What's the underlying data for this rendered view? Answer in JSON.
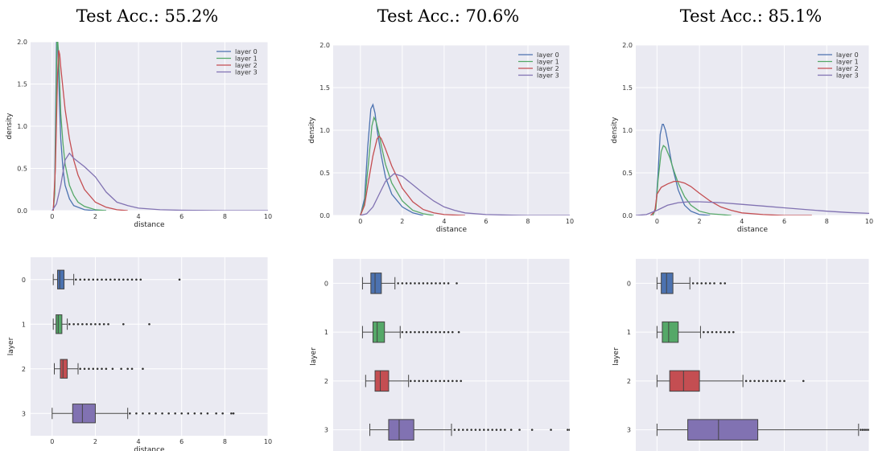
{
  "colors": {
    "layer_0": "#4C72B0",
    "layer_1": "#55A868",
    "layer_2": "#C44E52",
    "layer_3": "#8172B2",
    "axes_bg": "#EAEAF2",
    "grid": "#ffffff"
  },
  "chart_data": [
    {
      "type": "line",
      "column": 0,
      "title": "Test Acc.: 55.2%",
      "xlabel": "distance",
      "ylabel": "density",
      "xlim": [
        -1,
        10
      ],
      "ylim": [
        0,
        2.0
      ],
      "xticks": [
        0,
        2,
        4,
        6,
        8,
        10
      ],
      "yticks": [
        0.0,
        0.5,
        1.0,
        1.5,
        2.0
      ],
      "grid": true,
      "legend": "top-right",
      "series": [
        {
          "name": "layer 0",
          "x": [
            0.05,
            0.12,
            0.18,
            0.2,
            0.22,
            0.25,
            0.3,
            0.35,
            0.4,
            0.5,
            0.6,
            0.8,
            1.0,
            1.5,
            2.0,
            2.5
          ],
          "y": [
            0,
            0.3,
            1.5,
            2.0,
            2.0,
            2.0,
            1.6,
            1.2,
            0.85,
            0.5,
            0.3,
            0.14,
            0.06,
            0.01,
            0,
            0
          ]
        },
        {
          "name": "layer 1",
          "x": [
            0.05,
            0.12,
            0.18,
            0.22,
            0.26,
            0.3,
            0.35,
            0.4,
            0.5,
            0.6,
            0.8,
            1.0,
            1.2,
            1.5,
            2.0,
            2.5
          ],
          "y": [
            0,
            0.2,
            1.2,
            2.0,
            2.0,
            1.85,
            1.5,
            1.15,
            0.8,
            0.55,
            0.3,
            0.18,
            0.1,
            0.05,
            0.01,
            0
          ]
        },
        {
          "name": "layer 2",
          "x": [
            0.05,
            0.15,
            0.25,
            0.3,
            0.35,
            0.4,
            0.5,
            0.6,
            0.8,
            1.0,
            1.2,
            1.5,
            2.0,
            2.5,
            3.0,
            3.5
          ],
          "y": [
            0,
            0.5,
            1.6,
            1.9,
            1.85,
            1.7,
            1.45,
            1.2,
            0.85,
            0.6,
            0.42,
            0.25,
            0.1,
            0.04,
            0.01,
            0
          ]
        },
        {
          "name": "layer 3",
          "x": [
            0.0,
            0.2,
            0.4,
            0.6,
            0.8,
            1.0,
            1.2,
            1.5,
            2.0,
            2.5,
            3.0,
            3.5,
            4.0,
            5.0,
            6.0,
            8.0,
            10.0
          ],
          "y": [
            0,
            0.08,
            0.3,
            0.6,
            0.68,
            0.62,
            0.58,
            0.52,
            0.4,
            0.22,
            0.1,
            0.06,
            0.03,
            0.01,
            0.005,
            0,
            0
          ]
        }
      ]
    },
    {
      "type": "line",
      "column": 1,
      "title": "Test Acc.: 70.6%",
      "xlabel": "distance",
      "ylabel": "density",
      "xlim": [
        -1.3,
        10
      ],
      "ylim": [
        0,
        2.0
      ],
      "xticks": [
        0,
        2,
        4,
        6,
        8,
        10
      ],
      "yticks": [
        0.0,
        0.5,
        1.0,
        1.5,
        2.0
      ],
      "grid": true,
      "legend": "top-right",
      "series": [
        {
          "name": "layer 0",
          "x": [
            0.0,
            0.2,
            0.35,
            0.5,
            0.6,
            0.7,
            0.8,
            1.0,
            1.2,
            1.5,
            2.0,
            2.5,
            3.0
          ],
          "y": [
            0,
            0.2,
            0.8,
            1.25,
            1.3,
            1.2,
            1.0,
            0.7,
            0.45,
            0.25,
            0.1,
            0.03,
            0
          ]
        },
        {
          "name": "layer 1",
          "x": [
            0.0,
            0.2,
            0.4,
            0.55,
            0.65,
            0.75,
            0.9,
            1.0,
            1.2,
            1.5,
            2.0,
            2.5,
            3.0,
            3.5
          ],
          "y": [
            0,
            0.15,
            0.65,
            1.05,
            1.15,
            1.1,
            0.95,
            0.82,
            0.6,
            0.38,
            0.17,
            0.06,
            0.02,
            0
          ]
        },
        {
          "name": "layer 2",
          "x": [
            0.0,
            0.2,
            0.4,
            0.6,
            0.8,
            0.9,
            1.0,
            1.2,
            1.5,
            2.0,
            2.5,
            3.0,
            3.5,
            4.0,
            5.0
          ],
          "y": [
            0,
            0.12,
            0.42,
            0.7,
            0.9,
            0.93,
            0.9,
            0.78,
            0.58,
            0.32,
            0.16,
            0.07,
            0.03,
            0.01,
            0
          ]
        },
        {
          "name": "layer 3",
          "x": [
            0.0,
            0.3,
            0.6,
            0.9,
            1.2,
            1.6,
            2.0,
            2.5,
            3.0,
            3.5,
            4.0,
            4.5,
            5.0,
            6.0,
            7.0,
            8.0,
            10.0
          ],
          "y": [
            0,
            0.02,
            0.1,
            0.25,
            0.4,
            0.49,
            0.46,
            0.36,
            0.26,
            0.17,
            0.1,
            0.06,
            0.03,
            0.01,
            0.005,
            0,
            0
          ]
        }
      ]
    },
    {
      "type": "line",
      "column": 2,
      "title": "Test Acc.: 85.1%",
      "xlabel": "distance",
      "ylabel": "density",
      "xlim": [
        -1,
        10
      ],
      "ylim": [
        0,
        2.0
      ],
      "xticks": [
        0,
        2,
        4,
        6,
        8,
        10
      ],
      "yticks": [
        0.0,
        0.5,
        1.0,
        1.5,
        2.0
      ],
      "grid": true,
      "legend": "top-right",
      "series": [
        {
          "name": "layer 0",
          "x": [
            -0.2,
            -0.05,
            0.05,
            0.15,
            0.25,
            0.3,
            0.4,
            0.5,
            0.7,
            1.0,
            1.3,
            1.6,
            2.0,
            2.5
          ],
          "y": [
            0,
            0.1,
            0.5,
            0.95,
            1.07,
            1.07,
            1.0,
            0.88,
            0.6,
            0.3,
            0.12,
            0.05,
            0.01,
            0
          ]
        },
        {
          "name": "layer 1",
          "x": [
            -0.2,
            -0.05,
            0.05,
            0.2,
            0.3,
            0.4,
            0.6,
            0.8,
            1.0,
            1.3,
            1.6,
            2.0,
            2.5,
            3.0,
            3.5
          ],
          "y": [
            0,
            0.08,
            0.42,
            0.75,
            0.82,
            0.8,
            0.68,
            0.52,
            0.38,
            0.22,
            0.12,
            0.05,
            0.02,
            0.01,
            0
          ]
        },
        {
          "name": "layer 2",
          "x": [
            -0.3,
            -0.1,
            0.0,
            0.2,
            0.5,
            0.8,
            1.0,
            1.3,
            1.6,
            2.0,
            2.5,
            3.0,
            3.5,
            4.0,
            5.0,
            6.0,
            7.3
          ],
          "y": [
            0,
            0.05,
            0.25,
            0.33,
            0.37,
            0.4,
            0.4,
            0.38,
            0.34,
            0.26,
            0.17,
            0.1,
            0.06,
            0.03,
            0.01,
            0,
            0
          ]
        },
        {
          "name": "layer 3",
          "x": [
            -1.0,
            -0.5,
            0.0,
            0.5,
            1.0,
            1.5,
            2.0,
            3.0,
            4.0,
            5.0,
            6.0,
            7.0,
            8.0,
            9.0,
            10.0
          ],
          "y": [
            0,
            0.01,
            0.06,
            0.12,
            0.15,
            0.16,
            0.16,
            0.15,
            0.13,
            0.11,
            0.09,
            0.07,
            0.05,
            0.035,
            0.025
          ]
        }
      ]
    },
    {
      "type": "box",
      "column": 0,
      "xlabel": "distance",
      "ylabel": "layer",
      "xlim": [
        -1,
        10
      ],
      "xticks": [
        0,
        2,
        4,
        6,
        8,
        10
      ],
      "categories": [
        "0",
        "1",
        "2",
        "3"
      ],
      "grid": true,
      "boxes": [
        {
          "layer": "0",
          "min": 0.05,
          "q1": 0.25,
          "median": 0.35,
          "q3": 0.55,
          "whisker_max": 1.0,
          "outliers": [
            1.1,
            1.3,
            1.5,
            1.7,
            1.9,
            2.1,
            2.3,
            2.5,
            2.7,
            2.9,
            3.1,
            3.3,
            3.5,
            3.7,
            3.9,
            4.1,
            5.9
          ]
        },
        {
          "layer": "1",
          "min": 0.05,
          "q1": 0.18,
          "median": 0.28,
          "q3": 0.45,
          "whisker_max": 0.7,
          "outliers": [
            0.8,
            1.0,
            1.2,
            1.4,
            1.6,
            1.8,
            2.0,
            2.2,
            2.4,
            2.6,
            3.3,
            4.5
          ]
        },
        {
          "layer": "2",
          "min": 0.1,
          "q1": 0.38,
          "median": 0.5,
          "q3": 0.7,
          "whisker_max": 1.2,
          "outliers": [
            1.3,
            1.5,
            1.7,
            1.9,
            2.1,
            2.3,
            2.5,
            2.8,
            3.2,
            3.5,
            3.7,
            4.2
          ]
        },
        {
          "layer": "3",
          "min": 0.0,
          "q1": 0.95,
          "median": 1.4,
          "q3": 2.0,
          "whisker_max": 3.5,
          "outliers": [
            3.6,
            3.9,
            4.2,
            4.5,
            4.8,
            5.1,
            5.4,
            5.7,
            6.0,
            6.3,
            6.6,
            6.9,
            7.2,
            7.6,
            7.9,
            8.3,
            8.4
          ]
        }
      ]
    },
    {
      "type": "box",
      "column": 1,
      "xlabel": "distance",
      "ylabel": "layer",
      "xlim": [
        -1.3,
        10
      ],
      "xticks": [
        0,
        2,
        4,
        6,
        8,
        10
      ],
      "categories": [
        "0",
        "1",
        "2",
        "3"
      ],
      "grid": true,
      "boxes": [
        {
          "layer": "0",
          "min": 0.1,
          "q1": 0.5,
          "median": 0.7,
          "q3": 1.0,
          "whisker_max": 1.65,
          "outliers": [
            1.8,
            2.0,
            2.2,
            2.4,
            2.6,
            2.8,
            3.0,
            3.2,
            3.4,
            3.6,
            3.8,
            4.0,
            4.2,
            4.6
          ]
        },
        {
          "layer": "1",
          "min": 0.1,
          "q1": 0.6,
          "median": 0.8,
          "q3": 1.15,
          "whisker_max": 1.9,
          "outliers": [
            2.0,
            2.2,
            2.4,
            2.6,
            2.8,
            3.0,
            3.2,
            3.4,
            3.6,
            3.8,
            4.0,
            4.2,
            4.4,
            4.7
          ]
        },
        {
          "layer": "2",
          "min": 0.25,
          "q1": 0.7,
          "median": 0.95,
          "q3": 1.35,
          "whisker_max": 2.3,
          "outliers": [
            2.4,
            2.6,
            2.8,
            3.0,
            3.2,
            3.4,
            3.6,
            3.8,
            4.0,
            4.2,
            4.4,
            4.6,
            4.8
          ]
        },
        {
          "layer": "3",
          "min": 0.45,
          "q1": 1.35,
          "median": 1.85,
          "q3": 2.55,
          "whisker_max": 4.35,
          "outliers": [
            4.5,
            4.7,
            4.9,
            5.1,
            5.3,
            5.5,
            5.7,
            5.9,
            6.1,
            6.3,
            6.5,
            6.7,
            6.9,
            7.2,
            7.6,
            8.2,
            9.1,
            9.9,
            10.0
          ]
        }
      ]
    },
    {
      "type": "box",
      "column": 2,
      "xlabel": "distance",
      "ylabel": "layer",
      "xlim": [
        -1,
        10
      ],
      "xticks": [
        0,
        2,
        4,
        6,
        8,
        10
      ],
      "categories": [
        "0",
        "1",
        "2",
        "3"
      ],
      "grid": true,
      "boxes": [
        {
          "layer": "0",
          "min": 0.0,
          "q1": 0.2,
          "median": 0.45,
          "q3": 0.75,
          "whisker_max": 1.55,
          "outliers": [
            1.7,
            1.9,
            2.1,
            2.3,
            2.5,
            2.7,
            3.0,
            3.2
          ]
        },
        {
          "layer": "1",
          "min": 0.0,
          "q1": 0.25,
          "median": 0.55,
          "q3": 1.0,
          "whisker_max": 2.05,
          "outliers": [
            2.2,
            2.4,
            2.6,
            2.8,
            3.0,
            3.2,
            3.4,
            3.6
          ]
        },
        {
          "layer": "2",
          "min": 0.0,
          "q1": 0.6,
          "median": 1.25,
          "q3": 2.0,
          "whisker_max": 4.05,
          "outliers": [
            4.2,
            4.4,
            4.6,
            4.8,
            5.0,
            5.2,
            5.4,
            5.6,
            5.8,
            6.0,
            6.9
          ]
        },
        {
          "layer": "3",
          "min": 0.0,
          "q1": 1.45,
          "median": 2.9,
          "q3": 4.75,
          "whisker_max": 9.5,
          "outliers": [
            9.6,
            9.7,
            9.8,
            9.9,
            10.0
          ]
        }
      ]
    }
  ]
}
